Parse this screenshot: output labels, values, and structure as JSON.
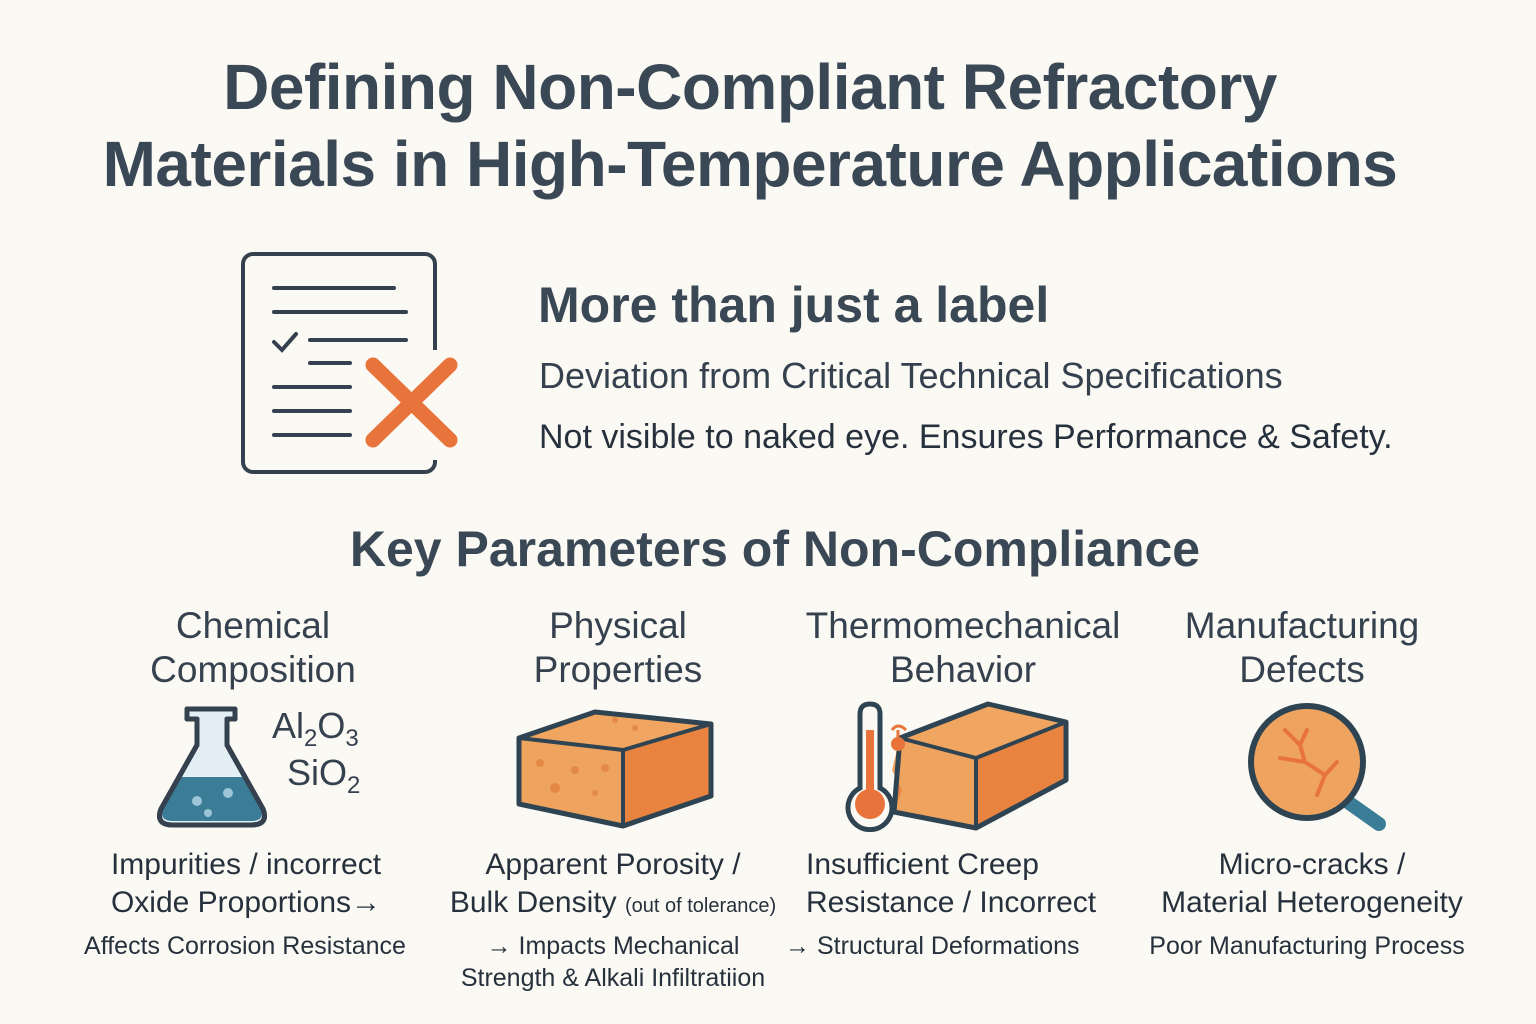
{
  "title": {
    "line1": "Defining Non-Compliant Refractory",
    "line2": "Materials in High-Temperature Applications"
  },
  "intro": {
    "icon": "document-checklist-rejected-icon",
    "heading": "More than just a label",
    "subheading": "Deviation from Critical Technical Specifications",
    "note": "Not visible to naked eye. Ensures Performance & Safety."
  },
  "section_title": "Key Parameters of Non-Compliance",
  "colors": {
    "text": "#35414e",
    "accent_orange": "#e8743b",
    "brick_orange": "#eea35f",
    "teal": "#3b7d96",
    "background": "#fbf9f3"
  },
  "parameters": [
    {
      "heading": [
        "Chemical",
        "Composition"
      ],
      "icon": "flask-icon",
      "formulas": [
        {
          "base": "Al",
          "sub1": "2",
          "mid": "O",
          "sub2": "3"
        },
        {
          "base": "SiO",
          "sub1": "2"
        }
      ],
      "desc": [
        "Impurities / incorrect",
        "Oxide Proportions→"
      ],
      "effect": [
        "Affects Corrosion Resistance"
      ]
    },
    {
      "heading": [
        "Physical",
        "Properties"
      ],
      "icon": "porous-brick-icon",
      "desc": [
        "Apparent Porosity /",
        "Bulk Density"
      ],
      "desc_note": "(out of tolerance)",
      "effect": [
        "→ Impacts Mechanical",
        "Strength & Alkali Infiltratiion"
      ]
    },
    {
      "heading": [
        "Thermomechanical",
        "Behavior"
      ],
      "icon": "thermometer-brick-icon",
      "desc": [
        "Insufficient Creep",
        "Resistance / Incorrect"
      ],
      "effect": [
        "→ Structural Deformations"
      ]
    },
    {
      "heading": [
        "Manufacturing",
        "Defects"
      ],
      "icon": "magnifier-cracks-icon",
      "desc": [
        "Micro-cracks /",
        "Material Heterogeneity"
      ],
      "effect": [
        "Poor Manufacturing Process"
      ]
    }
  ]
}
